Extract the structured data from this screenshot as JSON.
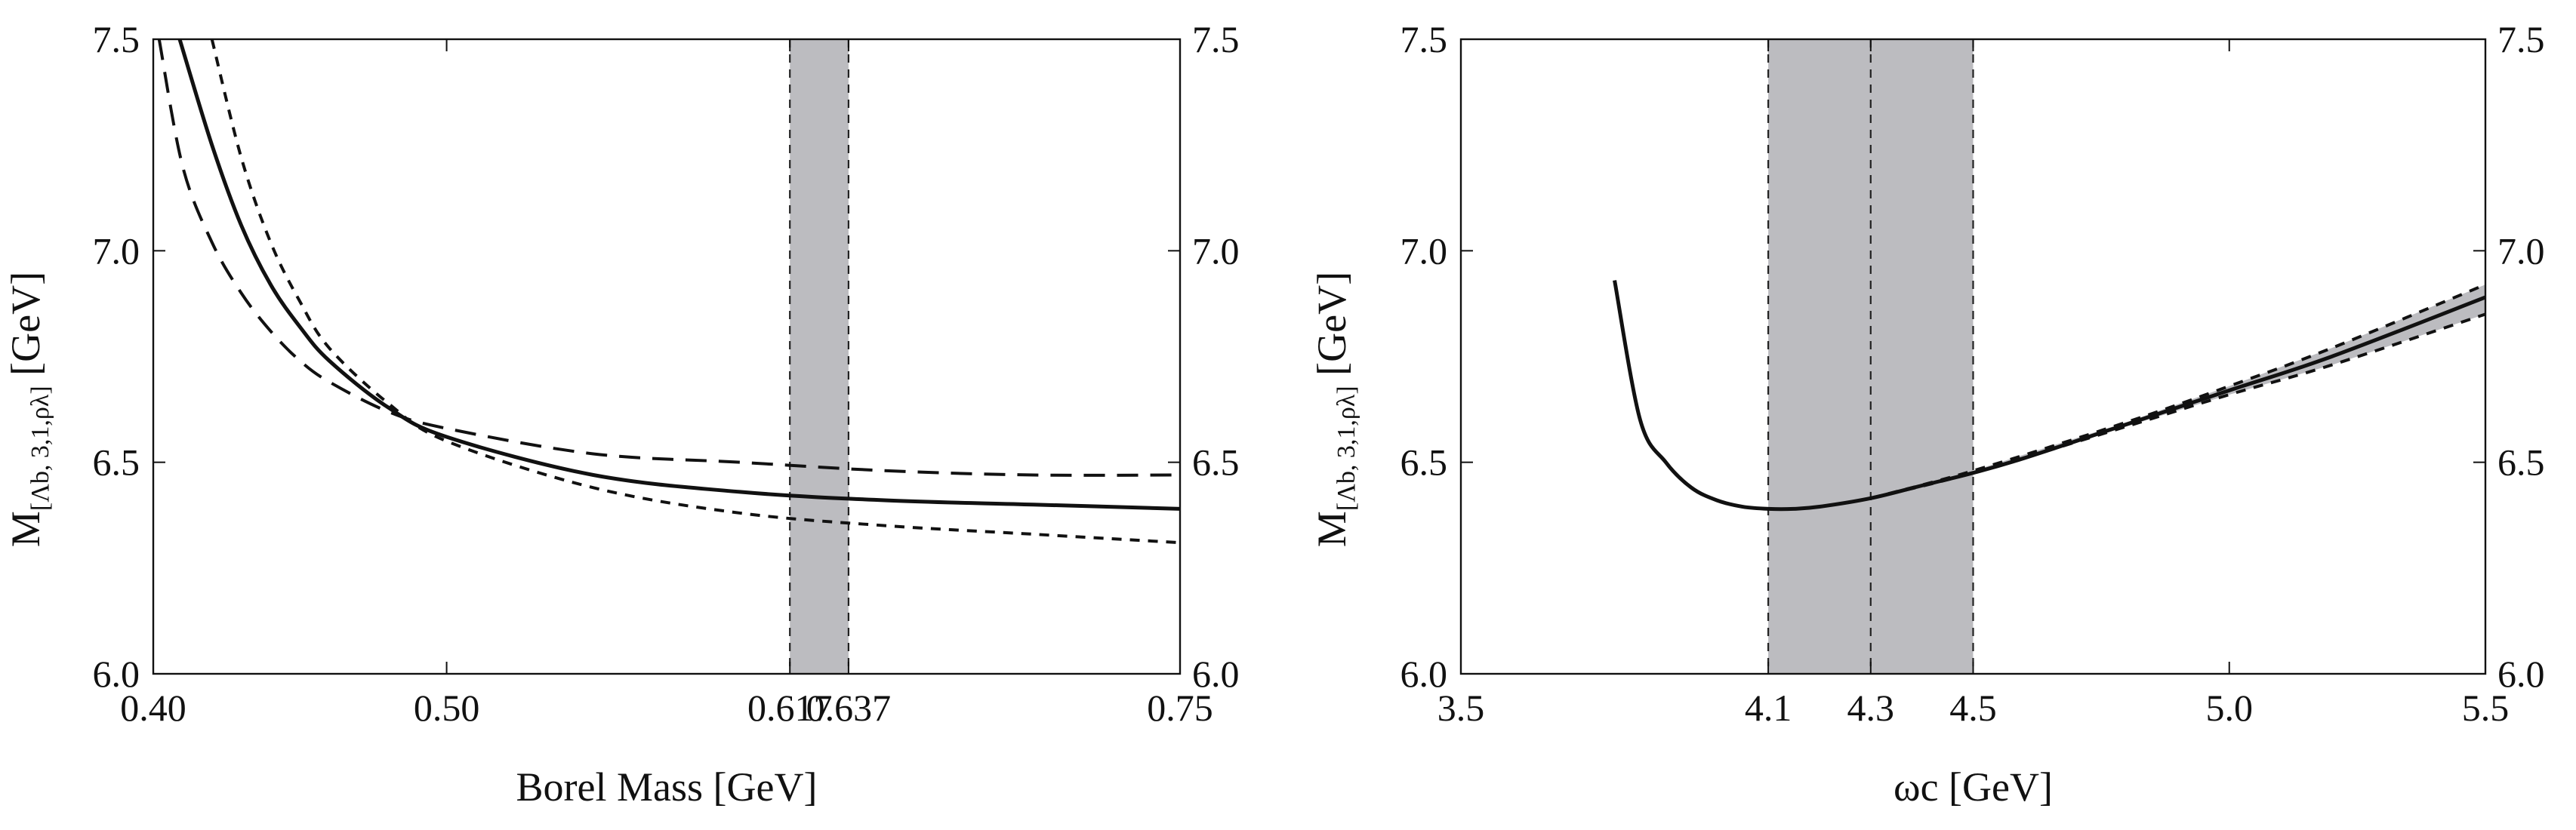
{
  "chart_data": [
    {
      "type": "line",
      "xlabel": "Borel Mass  [GeV]",
      "ylabel": {
        "main": "M",
        "sub": "[Λb, 3,1,ρλ]",
        "unit": "[GeV]"
      },
      "xlim": [
        0.4,
        0.75
      ],
      "ylim": [
        6.0,
        7.5
      ],
      "x_tick_values": [
        0.4,
        0.5,
        0.617,
        0.637,
        0.75
      ],
      "x_tick_labels": [
        "0.40",
        "0.50",
        "0.617",
        "0.637",
        "0.75"
      ],
      "y_tick_values": [
        6.0,
        6.5,
        7.0,
        7.5
      ],
      "y_tick_labels": [
        "6.0",
        "6.5",
        "7.0",
        "7.5"
      ],
      "right_axis_labels": true,
      "grid": false,
      "band": {
        "x_min": 0.617,
        "x_max": 0.637,
        "color": "#bcbcc0",
        "edge_style": "dashed"
      },
      "series": [
        {
          "style": "solid",
          "x": [
            0.409,
            0.42,
            0.43,
            0.44,
            0.45,
            0.46,
            0.48,
            0.5,
            0.55,
            0.6,
            0.65,
            0.7,
            0.75
          ],
          "y": [
            7.5,
            7.25,
            7.06,
            6.92,
            6.82,
            6.74,
            6.63,
            6.56,
            6.47,
            6.43,
            6.41,
            6.4,
            6.39
          ]
        },
        {
          "style": "long-dashed",
          "x": [
            0.402,
            0.41,
            0.42,
            0.43,
            0.44,
            0.45,
            0.46,
            0.48,
            0.5,
            0.55,
            0.6,
            0.65,
            0.7,
            0.75
          ],
          "y": [
            7.5,
            7.2,
            7.02,
            6.9,
            6.81,
            6.74,
            6.69,
            6.62,
            6.58,
            6.52,
            6.5,
            6.48,
            6.47,
            6.47
          ]
        },
        {
          "style": "short-dashed",
          "x": [
            0.42,
            0.43,
            0.44,
            0.45,
            0.46,
            0.48,
            0.5,
            0.55,
            0.6,
            0.65,
            0.7,
            0.75
          ],
          "y": [
            7.5,
            7.22,
            7.02,
            6.88,
            6.77,
            6.64,
            6.55,
            6.44,
            6.38,
            6.35,
            6.33,
            6.31
          ]
        }
      ]
    },
    {
      "type": "line",
      "xlabel": "ωc  [GeV]",
      "ylabel": {
        "main": "M",
        "sub": "[Λb, 3,1,ρλ]",
        "unit": "[GeV]"
      },
      "xlim": [
        3.5,
        5.5
      ],
      "ylim": [
        6.0,
        7.5
      ],
      "x_tick_values": [
        3.5,
        4.1,
        4.3,
        4.5,
        5.0,
        5.5
      ],
      "x_tick_labels": [
        "3.5",
        "4.1",
        "4.3",
        "4.5",
        "5.0",
        "5.5"
      ],
      "y_tick_values": [
        6.0,
        6.5,
        7.0,
        7.5
      ],
      "y_tick_labels": [
        "6.0",
        "6.5",
        "7.0",
        "7.5"
      ],
      "right_axis_labels": true,
      "grid": false,
      "band": {
        "x_min": 4.1,
        "x_max": 4.5,
        "color": "#bcbcc0",
        "edge_style": "dashed",
        "center_x": 4.3
      },
      "series": [
        {
          "style": "solid",
          "x": [
            3.8,
            3.85,
            3.9,
            3.95,
            4.0,
            4.05,
            4.1,
            4.15,
            4.2,
            4.3,
            4.4,
            4.5,
            4.6,
            4.8,
            5.0,
            5.2,
            5.5
          ],
          "y": [
            6.93,
            6.6,
            6.5,
            6.44,
            6.41,
            6.395,
            6.39,
            6.39,
            6.395,
            6.415,
            6.445,
            6.475,
            6.51,
            6.59,
            6.67,
            6.75,
            6.89
          ]
        },
        {
          "style": "short-dashed",
          "x": [
            4.3,
            4.5,
            4.8,
            5.0,
            5.2,
            5.5
          ],
          "y": [
            6.415,
            6.48,
            6.595,
            6.68,
            6.77,
            6.92
          ]
        },
        {
          "style": "short-dashed",
          "x": [
            4.3,
            4.5,
            4.8,
            5.0,
            5.2,
            5.5
          ],
          "y": [
            6.415,
            6.475,
            6.585,
            6.66,
            6.73,
            6.85
          ]
        }
      ]
    }
  ]
}
